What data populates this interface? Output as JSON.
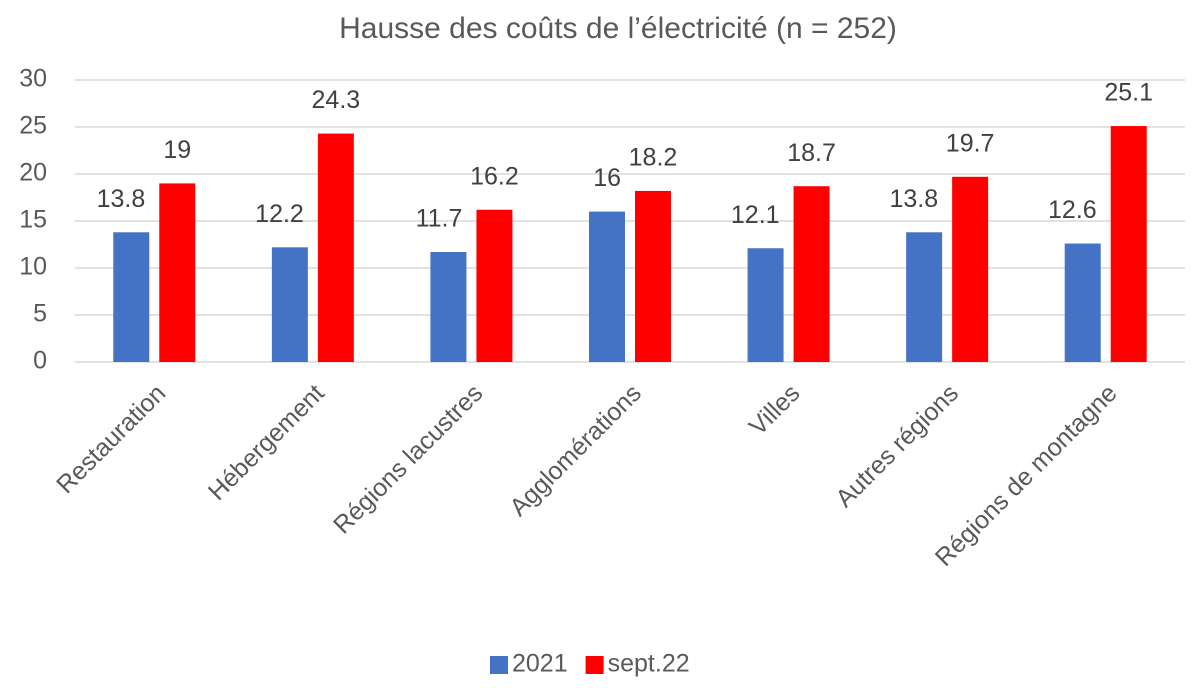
{
  "chart_data": {
    "type": "bar",
    "title": "Hausse des coûts de l’électricité (n = 252)",
    "categories": [
      "Restauration",
      "Hébergement",
      "Régions lacustres",
      "Agglomérations",
      "Villes",
      "Autres régions",
      "Régions de montagne"
    ],
    "series": [
      {
        "name": "2021",
        "color": "#4472c4",
        "values": [
          13.8,
          12.2,
          11.7,
          16,
          12.1,
          13.8,
          12.6
        ]
      },
      {
        "name": "sept.22",
        "color": "#ff0000",
        "values": [
          19,
          24.3,
          16.2,
          18.2,
          18.7,
          19.7,
          25.1
        ]
      }
    ],
    "ylim": [
      0,
      30
    ],
    "yticks": [
      0,
      5,
      10,
      15,
      20,
      25,
      30
    ],
    "grid": true,
    "legend": "bottom"
  }
}
